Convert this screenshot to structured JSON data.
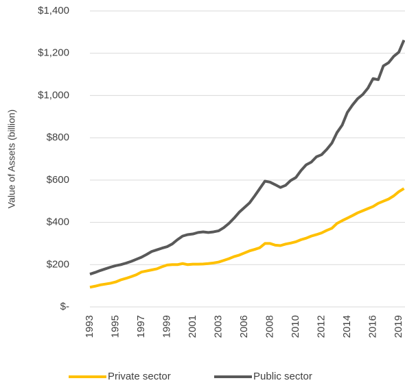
{
  "chart_data": {
    "type": "line",
    "y_label": "Value of Assets (billion)",
    "categories": [
      "1993",
      null,
      null,
      null,
      null,
      "1995",
      null,
      null,
      null,
      null,
      "1997",
      null,
      null,
      null,
      null,
      "1999",
      null,
      null,
      null,
      null,
      "2001",
      null,
      null,
      null,
      null,
      "2003",
      null,
      null,
      null,
      null,
      "2006",
      null,
      null,
      null,
      null,
      "2008",
      null,
      null,
      null,
      null,
      "2010",
      null,
      null,
      null,
      null,
      "2012",
      null,
      null,
      null,
      null,
      "2014",
      null,
      null,
      null,
      null,
      "2016",
      null,
      null,
      null,
      null,
      "2019",
      null
    ],
    "series": [
      {
        "name": "Private sector",
        "color": "#ffc000",
        "values": [
          93,
          98,
          104,
          108,
          112,
          118,
          128,
          135,
          143,
          152,
          165,
          170,
          175,
          180,
          190,
          198,
          200,
          200,
          205,
          200,
          202,
          202,
          203,
          205,
          208,
          212,
          220,
          228,
          238,
          245,
          255,
          265,
          272,
          280,
          300,
          300,
          292,
          290,
          297,
          302,
          308,
          318,
          325,
          335,
          342,
          350,
          362,
          372,
          395,
          408,
          420,
          432,
          445,
          455,
          465,
          475,
          490,
          500,
          510,
          525,
          545,
          560
        ]
      },
      {
        "name": "Public sector",
        "color": "#595959",
        "values": [
          155,
          163,
          172,
          180,
          188,
          195,
          200,
          207,
          215,
          225,
          235,
          248,
          262,
          270,
          278,
          285,
          298,
          318,
          335,
          342,
          345,
          352,
          355,
          352,
          355,
          360,
          375,
          395,
          420,
          448,
          470,
          492,
          525,
          560,
          595,
          590,
          578,
          565,
          575,
          598,
          612,
          645,
          672,
          685,
          710,
          720,
          745,
          775,
          825,
          860,
          920,
          955,
          985,
          1005,
          1035,
          1080,
          1075,
          1140,
          1155,
          1185,
          1205,
          1262
        ]
      }
    ],
    "ylim": [
      0,
      1400
    ],
    "yticks": [
      {
        "value": 0,
        "label": "$-"
      },
      {
        "value": 200,
        "label": "$200"
      },
      {
        "value": 400,
        "label": "$400"
      },
      {
        "value": 600,
        "label": "$600"
      },
      {
        "value": 800,
        "label": "$800"
      },
      {
        "value": 1000,
        "label": "$1,000"
      },
      {
        "value": 1200,
        "label": "$1,200"
      },
      {
        "value": 1400,
        "label": "$1,400"
      }
    ],
    "grid": true,
    "legend": "bottom"
  }
}
